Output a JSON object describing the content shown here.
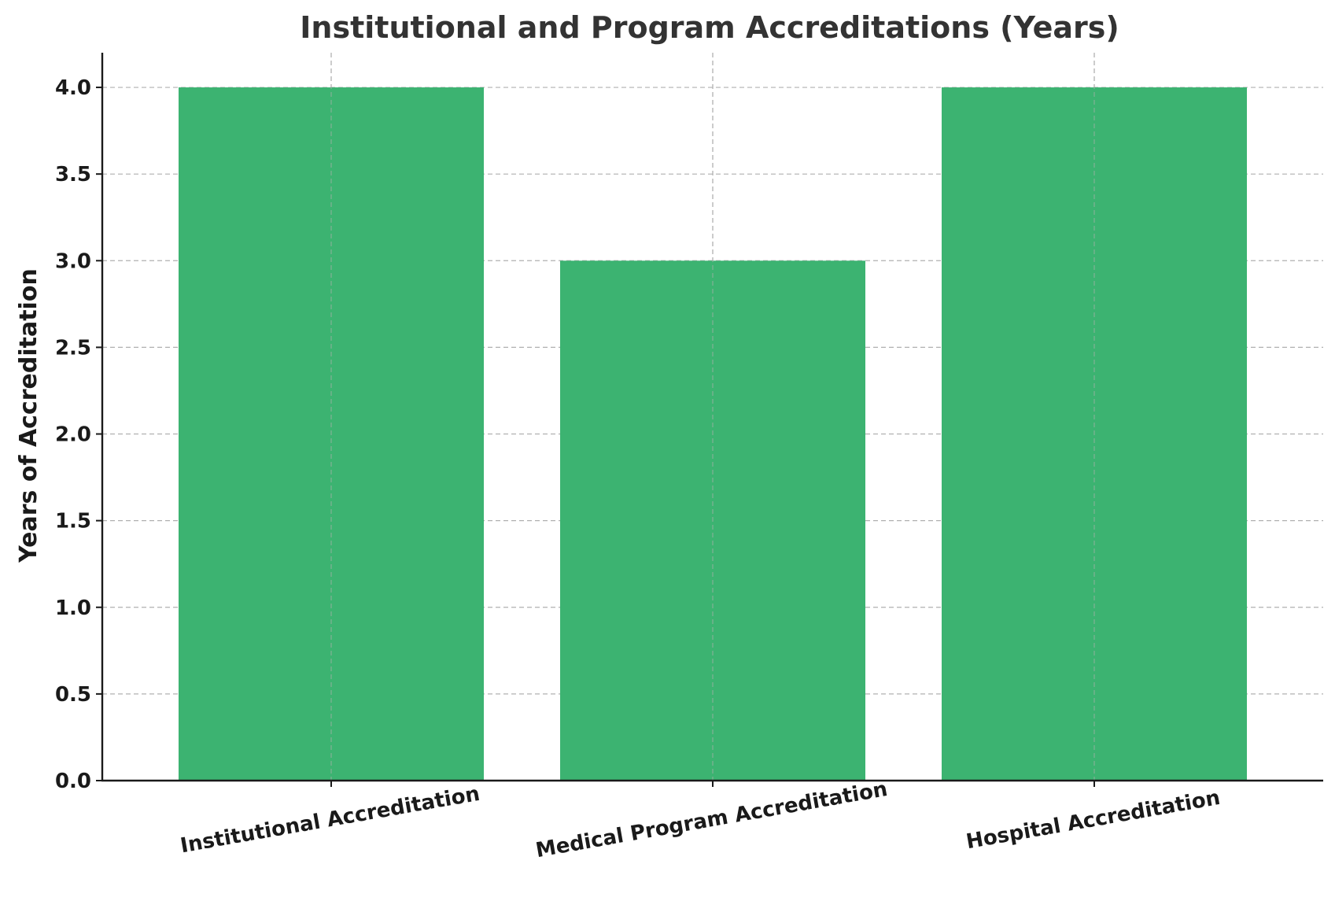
{
  "chart_data": {
    "type": "bar",
    "title": "Institutional and Program Accreditations (Years)",
    "xlabel": "",
    "ylabel": "Years of Accreditation",
    "categories": [
      "Institutional Accreditation",
      "Medical Program Accreditation",
      "Hospital Accreditation"
    ],
    "values": [
      4,
      3,
      4
    ],
    "ylim": [
      0,
      4.2
    ],
    "yticks": [
      0.0,
      0.5,
      1.0,
      1.5,
      2.0,
      2.5,
      3.0,
      3.5,
      4.0
    ],
    "ytick_labels": [
      "0.0",
      "0.5",
      "1.0",
      "1.5",
      "2.0",
      "2.5",
      "3.0",
      "3.5",
      "4.0"
    ],
    "grid": true,
    "legend": "none",
    "bar_color": "#3cb371",
    "xtick_rotation_deg": -10
  }
}
